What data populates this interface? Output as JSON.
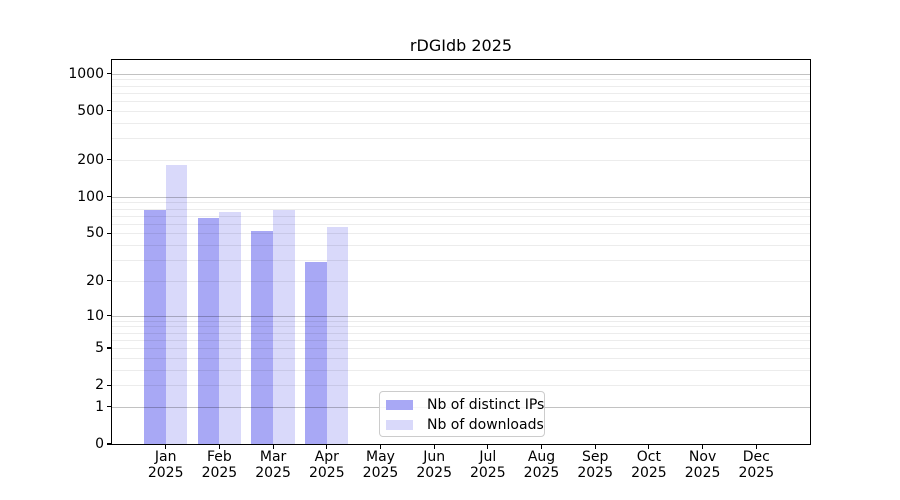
{
  "chart_data": {
    "type": "bar",
    "title": "rDGIdb 2025",
    "y_scale": "log10(1+y)",
    "grid": "horizontal",
    "categories": [
      "Jan",
      "Feb",
      "Mar",
      "Apr",
      "May",
      "Jun",
      "Jul",
      "Aug",
      "Sep",
      "Oct",
      "Nov",
      "Dec"
    ],
    "x_tick_year": "2025",
    "series": [
      {
        "name": "Nb of distinct IPs",
        "color": "#a8a8f5",
        "values": [
          78,
          67,
          52,
          29,
          null,
          null,
          null,
          null,
          null,
          null,
          null,
          null
        ]
      },
      {
        "name": "Nb of downloads",
        "color": "#d9d9fa",
        "values": [
          182,
          75,
          78,
          56,
          null,
          null,
          null,
          null,
          null,
          null,
          null,
          null
        ]
      }
    ],
    "y_ticks": [
      0,
      1,
      2,
      5,
      10,
      20,
      50,
      100,
      200,
      500,
      1000
    ],
    "y_major_gridlines": [
      1,
      10,
      100,
      1000
    ],
    "y_minor_gridlines": [
      2,
      3,
      4,
      5,
      6,
      7,
      8,
      9,
      20,
      30,
      40,
      50,
      60,
      70,
      80,
      90,
      200,
      300,
      400,
      500,
      600,
      700,
      800,
      900
    ],
    "ylim": [
      0,
      1300
    ],
    "legend": {
      "position": "lower center",
      "items": [
        "Nb of distinct IPs",
        "Nb of downloads"
      ]
    }
  }
}
